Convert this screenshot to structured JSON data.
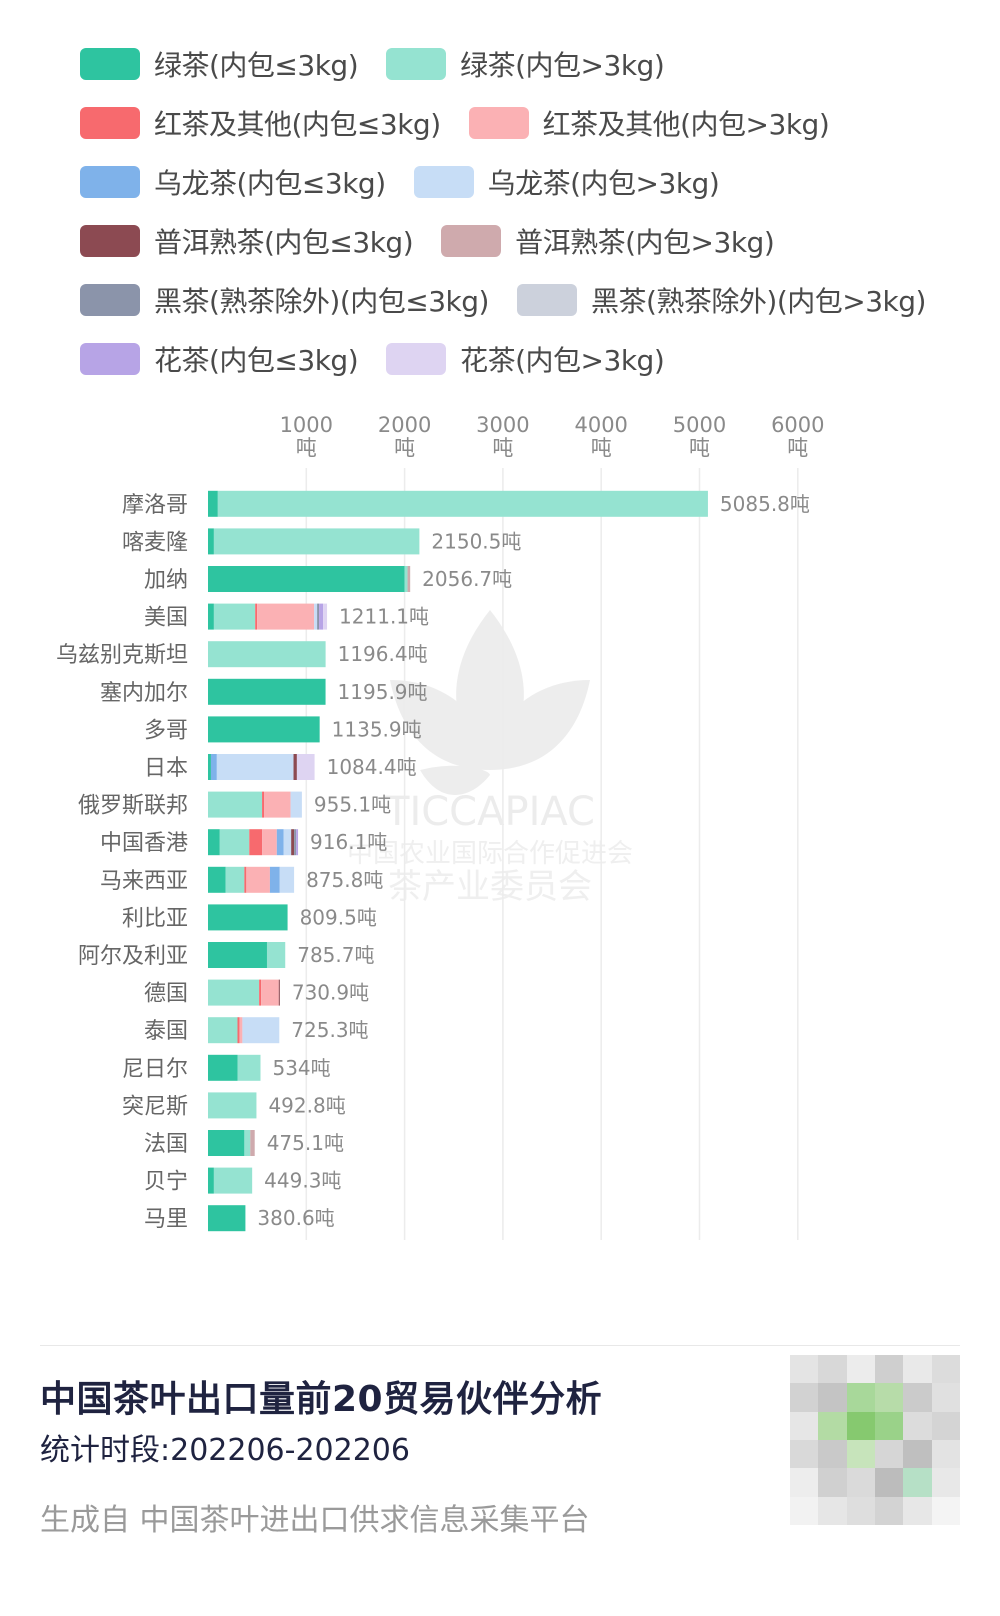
{
  "legend": [
    [
      {
        "label": "绿茶(内包≤3kg)",
        "color": "#2ec4a0"
      },
      {
        "label": "绿茶(内包>3kg)",
        "color": "#95e3d1"
      }
    ],
    [
      {
        "label": "红茶及其他(内包≤3kg)",
        "color": "#f76a6e"
      },
      {
        "label": "红茶及其他(内包>3kg)",
        "color": "#fbb1b4"
      }
    ],
    [
      {
        "label": "乌龙茶(内包≤3kg)",
        "color": "#7fb2ea"
      },
      {
        "label": "乌龙茶(内包>3kg)",
        "color": "#c7ddf6"
      }
    ],
    [
      {
        "label": "普洱熟茶(内包≤3kg)",
        "color": "#8c4a52"
      },
      {
        "label": "普洱熟茶(内包>3kg)",
        "color": "#cfaaad"
      }
    ],
    [
      {
        "label": "黑茶(熟茶除外)(内包≤3kg)",
        "color": "#8b94aa"
      },
      {
        "label": "黑茶(熟茶除外)(内包>3kg)",
        "color": "#ccd1dc"
      }
    ],
    [
      {
        "label": "花茶(内包≤3kg)",
        "color": "#b7a4e6"
      },
      {
        "label": "花茶(内包>3kg)",
        "color": "#ded4f2"
      }
    ]
  ],
  "chart_data": {
    "type": "bar",
    "orientation": "horizontal",
    "stacked": true,
    "xlim": [
      0,
      6000
    ],
    "xticks": [
      1000,
      2000,
      3000,
      4000,
      5000,
      6000
    ],
    "x_tick_unit": "吨",
    "grid": true,
    "categories": [
      "摩洛哥",
      "喀麦隆",
      "加纳",
      "美国",
      "乌兹别克斯坦",
      "塞内加尔",
      "多哥",
      "日本",
      "俄罗斯联邦",
      "中国香港",
      "马来西亚",
      "利比亚",
      "阿尔及利亚",
      "德国",
      "泰国",
      "尼日尔",
      "突尼斯",
      "法国",
      "贝宁",
      "马里"
    ],
    "totals": [
      5085.8,
      2150.5,
      2056.7,
      1211.1,
      1196.4,
      1195.9,
      1135.9,
      1084.4,
      955.1,
      916.1,
      875.8,
      809.5,
      785.7,
      730.9,
      725.3,
      534,
      492.8,
      475.1,
      449.3,
      380.6
    ],
    "total_labels": [
      "5085.8吨",
      "2150.5吨",
      "2056.7吨",
      "1211.1吨",
      "1196.4吨",
      "1195.9吨",
      "1135.9吨",
      "1084.4吨",
      "955.1吨",
      "916.1吨",
      "875.8吨",
      "809.5吨",
      "785.7吨",
      "730.9吨",
      "725.3吨",
      "534吨",
      "492.8吨",
      "475.1吨",
      "449.3吨",
      "380.6吨"
    ],
    "series": [
      {
        "name": "绿茶(内包≤3kg)",
        "color": "#2ec4a0",
        "values": [
          100,
          60,
          2000,
          60,
          0,
          1195.9,
          1135.9,
          30,
          0,
          120,
          180,
          809.5,
          600,
          0,
          0,
          300,
          0,
          370,
          60,
          380.6
        ]
      },
      {
        "name": "绿茶(内包>3kg)",
        "color": "#95e3d1",
        "values": [
          4985.8,
          2090.5,
          30,
          420,
          1196.4,
          0,
          0,
          0,
          550,
          300,
          190,
          0,
          185.7,
          520,
          300,
          234,
          492.8,
          60,
          389.3,
          0
        ]
      },
      {
        "name": "红茶及其他(内包≤3kg)",
        "color": "#f76a6e",
        "values": [
          0,
          0,
          0,
          20,
          0,
          0,
          0,
          0,
          20,
          130,
          20,
          0,
          0,
          20,
          20,
          0,
          0,
          0,
          0,
          0
        ]
      },
      {
        "name": "红茶及其他(内包>3kg)",
        "color": "#fbb1b4",
        "values": [
          0,
          0,
          0,
          580,
          0,
          0,
          0,
          0,
          270,
          150,
          240,
          0,
          0,
          180,
          30,
          0,
          0,
          0,
          0,
          0
        ]
      },
      {
        "name": "乌龙茶(内包≤3kg)",
        "color": "#7fb2ea",
        "values": [
          0,
          0,
          0,
          0,
          0,
          0,
          0,
          60,
          0,
          70,
          100,
          0,
          0,
          0,
          0,
          0,
          0,
          0,
          0,
          0
        ]
      },
      {
        "name": "乌龙茶(内包>3kg)",
        "color": "#c7ddf6",
        "values": [
          0,
          0,
          0,
          30,
          0,
          0,
          0,
          780,
          115.1,
          76.1,
          145.8,
          0,
          0,
          0,
          375.3,
          0,
          0,
          0,
          0,
          0
        ]
      },
      {
        "name": "普洱熟茶(内包≤3kg)",
        "color": "#8c4a52",
        "values": [
          0,
          0,
          0,
          0,
          0,
          0,
          0,
          34.4,
          0,
          30,
          0,
          0,
          0,
          10.9,
          0,
          0,
          0,
          0,
          0,
          0
        ]
      },
      {
        "name": "普洱熟茶(内包>3kg)",
        "color": "#cfaaad",
        "values": [
          0,
          0,
          26.7,
          0,
          0,
          0,
          0,
          0,
          0,
          0,
          0,
          0,
          0,
          0,
          0,
          0,
          0,
          45.1,
          0,
          0
        ]
      },
      {
        "name": "黑茶(熟茶除外)(内包≤3kg)",
        "color": "#8b94aa",
        "values": [
          0,
          0,
          0,
          20,
          0,
          0,
          0,
          0,
          0,
          20,
          0,
          0,
          0,
          0,
          0,
          0,
          0,
          0,
          0,
          0
        ]
      },
      {
        "name": "黑茶(熟茶除外)(内包>3kg)",
        "color": "#ccd1dc",
        "values": [
          0,
          0,
          0,
          0,
          0,
          0,
          0,
          0,
          0,
          0,
          0,
          0,
          0,
          0,
          0,
          0,
          0,
          0,
          0,
          0
        ]
      },
      {
        "name": "花茶(内包≤3kg)",
        "color": "#b7a4e6",
        "values": [
          0,
          0,
          0,
          41.1,
          0,
          0,
          0,
          0,
          0,
          20,
          0,
          0,
          0,
          0,
          0,
          0,
          0,
          0,
          0,
          0
        ]
      },
      {
        "name": "花茶(内包>3kg)",
        "color": "#ded4f2",
        "values": [
          0,
          0,
          0,
          40,
          0,
          0,
          0,
          180,
          0,
          0,
          0,
          0,
          0,
          0,
          0,
          0,
          0,
          0,
          0,
          0
        ]
      }
    ]
  },
  "watermark": {
    "text_1": "TICCAPIAC",
    "text_2": "中国农业国际合作促进会",
    "text_3": "茶产业委员会"
  },
  "footer": {
    "title": "中国茶叶出口量前20贸易伙伴分析",
    "period": "统计时段:202206-202206",
    "source": "生成自 中国茶叶进出口供求信息采集平台"
  }
}
